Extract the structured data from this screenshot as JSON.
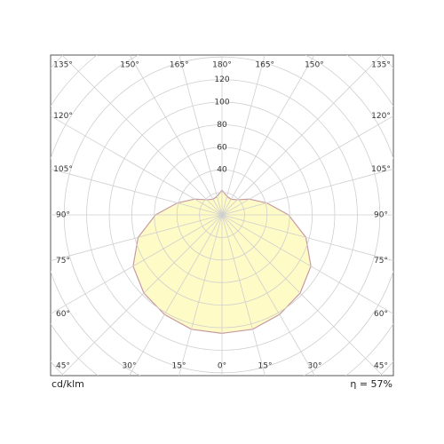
{
  "chart_data": {
    "type": "polar",
    "unit_label": "cd/klm",
    "efficiency": "η = 57%",
    "angles": [
      0,
      15,
      30,
      45,
      60,
      75,
      90,
      105,
      120,
      135,
      150,
      165,
      180
    ],
    "values": [
      105,
      105,
      102,
      98,
      91,
      77,
      59,
      41,
      28,
      19,
      16,
      17,
      22
    ],
    "color": "#fffbc6",
    "line_color": "#c79aa3",
    "rlim": [
      0,
      200
    ],
    "rticks": [
      40,
      60,
      80,
      100,
      120
    ],
    "rgrid": [
      20,
      40,
      60,
      80,
      100,
      120,
      140,
      160,
      180,
      200
    ],
    "angle_ticks": [
      {
        "value": -180,
        "label": "180°"
      },
      {
        "value": -165,
        "label": "165°"
      },
      {
        "value": -150,
        "label": "150°"
      },
      {
        "value": -135,
        "label": "135°"
      },
      {
        "value": -120,
        "label": "120°"
      },
      {
        "value": -105,
        "label": "105°"
      },
      {
        "value": -90,
        "label": "90°"
      },
      {
        "value": -75,
        "label": "75°"
      },
      {
        "value": -60,
        "label": "60°"
      },
      {
        "value": -45,
        "label": "45°"
      },
      {
        "value": -30,
        "label": "30°"
      },
      {
        "value": -15,
        "label": "15°"
      },
      {
        "value": 0,
        "label": "0°"
      },
      {
        "value": 15,
        "label": "15°"
      },
      {
        "value": 30,
        "label": "30°"
      },
      {
        "value": 45,
        "label": "45°"
      },
      {
        "value": 60,
        "label": "60°"
      },
      {
        "value": 75,
        "label": "75°"
      },
      {
        "value": 90,
        "label": "90°"
      },
      {
        "value": 105,
        "label": "105°"
      },
      {
        "value": 120,
        "label": "120°"
      },
      {
        "value": 135,
        "label": "135°"
      },
      {
        "value": 150,
        "label": "150°"
      },
      {
        "value": 165,
        "label": "165°"
      }
    ],
    "grid": true
  }
}
